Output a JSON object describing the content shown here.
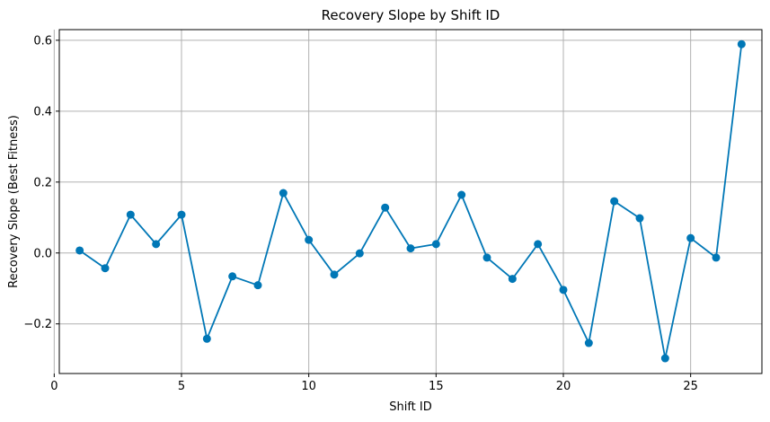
{
  "chart_data": {
    "type": "line",
    "title": "Recovery Slope by Shift ID",
    "xlabel": "Shift ID",
    "ylabel": "Recovery Slope (Best Fitness)",
    "xlim": [
      0.2,
      27.8
    ],
    "ylim": [
      -0.34,
      0.63
    ],
    "xticks": [
      0,
      5,
      10,
      15,
      20,
      25
    ],
    "xtick_labels": [
      "0",
      "5",
      "10",
      "15",
      "20",
      "25"
    ],
    "yticks": [
      -0.2,
      0.0,
      0.2,
      0.4,
      0.6
    ],
    "ytick_labels": [
      "−0.2",
      "0.0",
      "0.2",
      "0.4",
      "0.6"
    ],
    "grid": true,
    "marker": "circle",
    "color": "#0077b6",
    "series": [
      {
        "x": [
          1,
          2,
          3,
          4,
          5,
          6,
          7,
          8,
          9,
          10,
          11,
          12,
          13,
          14,
          15,
          16,
          17,
          18,
          19,
          20,
          21,
          22,
          23,
          24,
          25,
          26,
          27
        ],
        "y": [
          0.007,
          -0.043,
          0.108,
          0.025,
          0.108,
          -0.242,
          -0.066,
          -0.091,
          0.169,
          0.037,
          -0.061,
          -0.001,
          0.128,
          0.013,
          0.025,
          0.164,
          -0.013,
          -0.073,
          0.025,
          -0.104,
          -0.254,
          0.146,
          0.098,
          -0.297,
          0.042,
          -0.013,
          0.589
        ]
      }
    ]
  }
}
